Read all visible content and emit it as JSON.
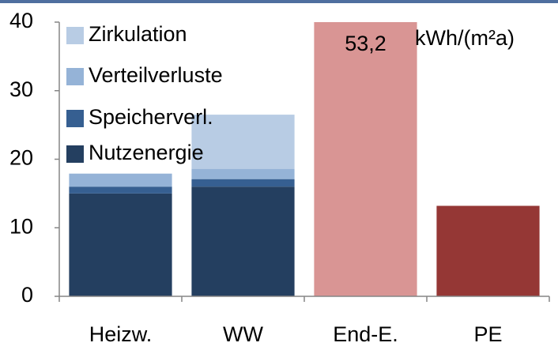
{
  "chart_data": {
    "type": "stacked_bar",
    "annotation": "kWh/(m²a)",
    "categories": [
      "Heizw.",
      "WW",
      "End-E.",
      "PE"
    ],
    "series": [
      {
        "name": "Nutzenergie",
        "color": "#243f60",
        "values": [
          15,
          16,
          null,
          null
        ]
      },
      {
        "name": "Speicherverl.",
        "color": "#365f91",
        "values": [
          1,
          1.1,
          null,
          null
        ]
      },
      {
        "name": "Verteilverluste",
        "color": "#95b3d7",
        "values": [
          1.9,
          1.5,
          null,
          null
        ]
      },
      {
        "name": "Zirkulation",
        "color": "#b8cce4",
        "values": [
          null,
          7.9,
          null,
          null
        ]
      }
    ],
    "totals": {
      "values": [
        null,
        null,
        53.2,
        13.2
      ],
      "value_labels": [
        null,
        null,
        "53,2",
        null
      ],
      "colors": [
        null,
        null,
        "#d99594",
        "#953735"
      ]
    },
    "ylim": [
      0,
      40
    ],
    "yticks": [
      0,
      10,
      20,
      30,
      40
    ],
    "grid": false,
    "legend": "upper left"
  }
}
